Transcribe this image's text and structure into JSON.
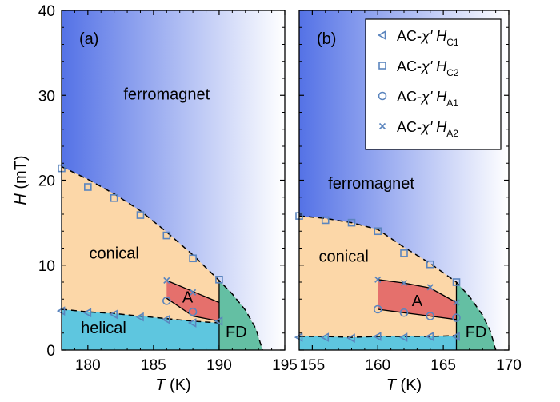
{
  "chart_data": [
    {
      "type": "scatter",
      "panel_label": "(a)",
      "xlim": [
        178,
        195
      ],
      "ylim": [
        0,
        40
      ],
      "xticks": [
        180,
        185,
        190,
        195
      ],
      "yticks": [
        0,
        10,
        20,
        30,
        40
      ],
      "xlabel": "T",
      "xunit": "(K)",
      "ylabel": "H",
      "yunit": "(mT)",
      "regions": [
        "ferromagnet",
        "conical",
        "helical",
        "A",
        "FD"
      ],
      "series": [
        {
          "key": "HC1",
          "marker": "triangle",
          "points": [
            [
              178,
              4.6
            ],
            [
              180,
              4.4
            ],
            [
              182,
              4.2
            ],
            [
              184,
              3.9
            ],
            [
              186,
              3.6
            ],
            [
              188,
              3.2
            ],
            [
              190,
              3.4
            ]
          ]
        },
        {
          "key": "HC2",
          "marker": "square",
          "points": [
            [
              178,
              21.4
            ],
            [
              180,
              19.2
            ],
            [
              182,
              17.9
            ],
            [
              184,
              15.9
            ],
            [
              186,
              13.5
            ],
            [
              188,
              10.8
            ],
            [
              190,
              8.3
            ]
          ]
        },
        {
          "key": "HA1",
          "marker": "circle",
          "points": [
            [
              186,
              5.8
            ],
            [
              188,
              4.5
            ]
          ]
        },
        {
          "key": "HA2",
          "marker": "cross",
          "points": [
            [
              186,
              8.2
            ],
            [
              188,
              6.8
            ]
          ]
        }
      ],
      "boundaries": {
        "fm_conical": [
          [
            178,
            21.6
          ],
          [
            180,
            20.1
          ],
          [
            182,
            18.4
          ],
          [
            184,
            16.4
          ],
          [
            186,
            13.9
          ],
          [
            188,
            11.2
          ],
          [
            190,
            8.2
          ],
          [
            191,
            6.6
          ],
          [
            192,
            4.7
          ],
          [
            192.8,
            2.5
          ],
          [
            193.3,
            0
          ]
        ],
        "conical_helical": [
          [
            178,
            4.8
          ],
          [
            180,
            4.5
          ],
          [
            182,
            4.3
          ],
          [
            184,
            4.0
          ],
          [
            186,
            3.7
          ],
          [
            188,
            3.4
          ],
          [
            190,
            3.2
          ]
        ],
        "a_upper": [
          [
            186,
            8.2
          ],
          [
            188,
            6.9
          ],
          [
            190,
            5.6
          ]
        ],
        "a_lower": [
          [
            186,
            6.1
          ],
          [
            188,
            4.0
          ],
          [
            190,
            3.4
          ]
        ],
        "fd_left_T": 190
      }
    },
    {
      "type": "scatter",
      "panel_label": "(b)",
      "xlim": [
        154,
        170
      ],
      "ylim": [
        0,
        40
      ],
      "xticks": [
        155,
        160,
        165,
        170
      ],
      "yticks": [
        0,
        10,
        20,
        30,
        40
      ],
      "xlabel": "T",
      "xunit": "(K)",
      "regions": [
        "ferromagnet",
        "conical",
        "A",
        "FD"
      ],
      "series": [
        {
          "key": "HC1",
          "marker": "triangle",
          "points": [
            [
              154,
              1.5
            ],
            [
              156,
              1.5
            ],
            [
              158,
              1.4
            ],
            [
              160,
              1.6
            ],
            [
              162,
              1.5
            ],
            [
              164,
              1.6
            ],
            [
              166,
              1.6
            ]
          ]
        },
        {
          "key": "HC2",
          "marker": "square",
          "points": [
            [
              154,
              15.8
            ],
            [
              156,
              15.3
            ],
            [
              158,
              15.0
            ],
            [
              160,
              14.0
            ],
            [
              162,
              11.4
            ],
            [
              164,
              10.1
            ],
            [
              166,
              8.0
            ]
          ]
        },
        {
          "key": "HA1",
          "marker": "circle",
          "points": [
            [
              160,
              4.8
            ],
            [
              162,
              4.4
            ],
            [
              164,
              4.0
            ],
            [
              166,
              3.8
            ]
          ]
        },
        {
          "key": "HA2",
          "marker": "cross",
          "points": [
            [
              160,
              8.3
            ],
            [
              162,
              7.9
            ],
            [
              164,
              7.4
            ],
            [
              166,
              5.6
            ]
          ]
        }
      ],
      "boundaries": {
        "fm_conical": [
          [
            154,
            15.8
          ],
          [
            156,
            15.5
          ],
          [
            158,
            15.0
          ],
          [
            160,
            14.2
          ],
          [
            162,
            12.1
          ],
          [
            164,
            10.2
          ],
          [
            166,
            8.0
          ],
          [
            167,
            6.3
          ],
          [
            168,
            4.1
          ],
          [
            168.6,
            2.2
          ],
          [
            169,
            0
          ]
        ],
        "conical_helical": [
          [
            154,
            1.6
          ],
          [
            156,
            1.6
          ],
          [
            158,
            1.5
          ],
          [
            160,
            1.6
          ],
          [
            162,
            1.6
          ],
          [
            164,
            1.6
          ],
          [
            166,
            1.7
          ]
        ],
        "a_upper": [
          [
            160,
            8.3
          ],
          [
            162,
            7.9
          ],
          [
            164,
            7.3
          ],
          [
            166,
            5.6
          ]
        ],
        "a_lower": [
          [
            160,
            4.8
          ],
          [
            162,
            4.4
          ],
          [
            164,
            4.0
          ],
          [
            166,
            3.6
          ]
        ],
        "fd_left_T": 166
      }
    }
  ],
  "legend": [
    {
      "key": "HC1",
      "marker": "triangle",
      "prefix": "AC-",
      "chi": "χ'",
      "sym": "H",
      "sub": "C1"
    },
    {
      "key": "HC2",
      "marker": "square",
      "prefix": "AC-",
      "chi": "χ'",
      "sym": "H",
      "sub": "C2"
    },
    {
      "key": "HA1",
      "marker": "circle",
      "prefix": "AC-",
      "chi": "χ'",
      "sym": "H",
      "sub": "A1"
    },
    {
      "key": "HA2",
      "marker": "cross",
      "prefix": "AC-",
      "chi": "χ'",
      "sym": "H",
      "sub": "A2"
    }
  ],
  "colors": {
    "ferromagnet_strong": "#5472e6",
    "ferromagnet_light": "#ffffff",
    "conical": "#fcd7a8",
    "helical": "#5ec6df",
    "skyrmion_A": "#e5706c",
    "fd": "#64bfa3",
    "marker": "#5b85be"
  },
  "legend_placement": "top-right"
}
